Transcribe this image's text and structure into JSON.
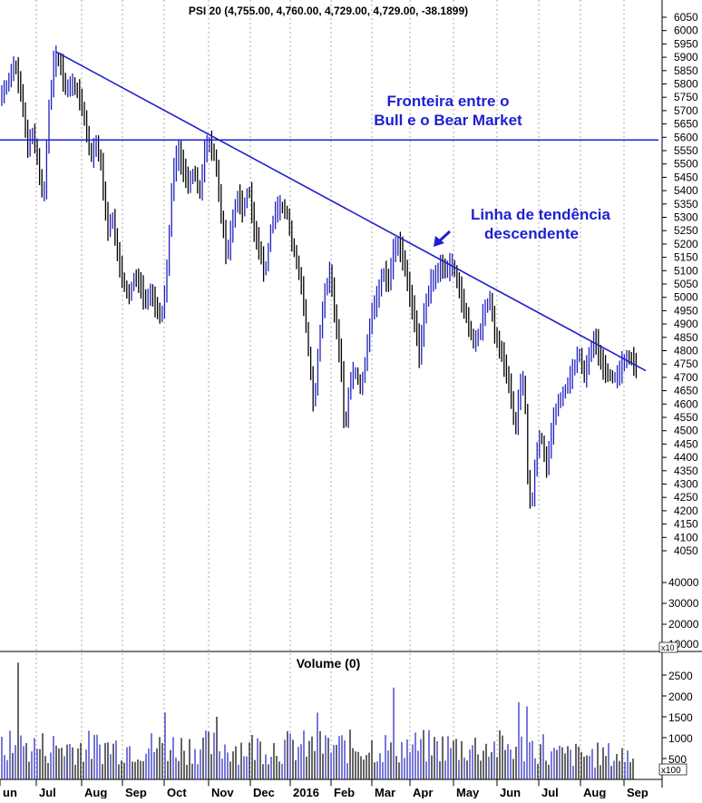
{
  "chart_data": {
    "type": "candlestick",
    "title": "PSI 20 (4,755.00, 4,760.00, 4,729.00, 4,729.00, -38.1899)",
    "price_axis": {
      "ticks": [
        6050,
        6000,
        5950,
        5900,
        5850,
        5800,
        5750,
        5700,
        5650,
        5600,
        5550,
        5500,
        5450,
        5400,
        5350,
        5300,
        5250,
        5200,
        5150,
        5100,
        5050,
        5000,
        4950,
        4900,
        4850,
        4800,
        4750,
        4700,
        4650,
        4600,
        4550,
        4500,
        4450,
        4400,
        4350,
        4300,
        4250,
        4200,
        4150,
        4100,
        4050
      ],
      "lower_ticks": [
        "4050",
        "40000",
        "30000",
        "20000",
        "10000"
      ],
      "multiplier_label": "x10"
    },
    "months": [
      "un",
      "Jul",
      "Aug",
      "Sep",
      "Oct",
      "Nov",
      "Dec",
      "2016",
      "Feb",
      "Mar",
      "Apr",
      "May",
      "Jun",
      "Jul",
      "Aug",
      "Sep"
    ],
    "candle_colors": {
      "up": "#2020c0",
      "down": "#000000"
    },
    "price_path": [
      [
        0,
        5750
      ],
      [
        8,
        5800
      ],
      [
        16,
        5880
      ],
      [
        24,
        5750
      ],
      [
        30,
        5560
      ],
      [
        36,
        5620
      ],
      [
        42,
        5500
      ],
      [
        48,
        5350
      ],
      [
        54,
        5720
      ],
      [
        60,
        5900
      ],
      [
        66,
        5880
      ],
      [
        72,
        5780
      ],
      [
        80,
        5800
      ],
      [
        88,
        5750
      ],
      [
        94,
        5650
      ],
      [
        100,
        5520
      ],
      [
        106,
        5580
      ],
      [
        112,
        5480
      ],
      [
        118,
        5250
      ],
      [
        124,
        5300
      ],
      [
        130,
        5150
      ],
      [
        136,
        5050
      ],
      [
        142,
        5000
      ],
      [
        148,
        5080
      ],
      [
        154,
        5050
      ],
      [
        160,
        4980
      ],
      [
        166,
        5020
      ],
      [
        172,
        4960
      ],
      [
        178,
        4920
      ],
      [
        184,
        5100
      ],
      [
        190,
        5450
      ],
      [
        196,
        5550
      ],
      [
        202,
        5480
      ],
      [
        208,
        5420
      ],
      [
        214,
        5480
      ],
      [
        220,
        5380
      ],
      [
        226,
        5560
      ],
      [
        232,
        5580
      ],
      [
        238,
        5500
      ],
      [
        244,
        5300
      ],
      [
        250,
        5150
      ],
      [
        256,
        5280
      ],
      [
        262,
        5380
      ],
      [
        268,
        5320
      ],
      [
        274,
        5420
      ],
      [
        280,
        5250
      ],
      [
        286,
        5180
      ],
      [
        292,
        5080
      ],
      [
        298,
        5250
      ],
      [
        304,
        5330
      ],
      [
        310,
        5340
      ],
      [
        316,
        5320
      ],
      [
        322,
        5200
      ],
      [
        328,
        5120
      ],
      [
        334,
        5000
      ],
      [
        340,
        4800
      ],
      [
        346,
        4580
      ],
      [
        352,
        4850
      ],
      [
        358,
        5020
      ],
      [
        364,
        5100
      ],
      [
        370,
        4900
      ],
      [
        376,
        4750
      ],
      [
        380,
        4480
      ],
      [
        386,
        4700
      ],
      [
        392,
        4720
      ],
      [
        398,
        4650
      ],
      [
        404,
        4800
      ],
      [
        410,
        4950
      ],
      [
        416,
        5000
      ],
      [
        422,
        5100
      ],
      [
        428,
        5050
      ],
      [
        434,
        5180
      ],
      [
        440,
        5200
      ],
      [
        446,
        5120
      ],
      [
        452,
        5000
      ],
      [
        458,
        4900
      ],
      [
        462,
        4780
      ],
      [
        468,
        4950
      ],
      [
        474,
        5050
      ],
      [
        480,
        5080
      ],
      [
        486,
        5120
      ],
      [
        492,
        5100
      ],
      [
        498,
        5130
      ],
      [
        504,
        5060
      ],
      [
        510,
        4980
      ],
      [
        516,
        4900
      ],
      [
        522,
        4830
      ],
      [
        528,
        4860
      ],
      [
        534,
        4950
      ],
      [
        540,
        5000
      ],
      [
        546,
        4850
      ],
      [
        552,
        4800
      ],
      [
        558,
        4720
      ],
      [
        564,
        4620
      ],
      [
        568,
        4480
      ],
      [
        572,
        4650
      ],
      [
        578,
        4700
      ],
      [
        582,
        4300
      ],
      [
        586,
        4200
      ],
      [
        590,
        4380
      ],
      [
        596,
        4500
      ],
      [
        602,
        4350
      ],
      [
        608,
        4500
      ],
      [
        614,
        4600
      ],
      [
        620,
        4630
      ],
      [
        626,
        4680
      ],
      [
        632,
        4730
      ],
      [
        638,
        4800
      ],
      [
        644,
        4700
      ],
      [
        650,
        4790
      ],
      [
        656,
        4850
      ],
      [
        662,
        4760
      ],
      [
        668,
        4720
      ],
      [
        674,
        4700
      ],
      [
        680,
        4700
      ],
      [
        686,
        4750
      ],
      [
        692,
        4780
      ],
      [
        698,
        4760
      ],
      [
        702,
        4730
      ]
    ],
    "annotations": [
      {
        "lines": [
          "Fronteira entre o",
          "Bull e o Bear Market"
        ]
      },
      {
        "lines": [
          "Linha de tendência",
          "descendente"
        ]
      }
    ],
    "reference_line": {
      "type": "horizontal",
      "price": 5590,
      "color": "#1f1fd1"
    },
    "trend_line": {
      "from": [
        62,
        5920
      ],
      "to": [
        712,
        4725
      ],
      "color": "#1f1fd1"
    },
    "volume_panel": {
      "title": "Volume (0)",
      "ticks": [
        2500,
        2000,
        1500,
        1000,
        500
      ],
      "multiplier_label": "x100",
      "typical_range": [
        350,
        1200
      ],
      "spikes": [
        [
          20,
          2800
        ],
        [
          434,
          2200
        ],
        [
          572,
          1850
        ],
        [
          580,
          1750
        ],
        [
          183,
          1600
        ],
        [
          238,
          1500
        ],
        [
          350,
          1600
        ]
      ]
    }
  }
}
